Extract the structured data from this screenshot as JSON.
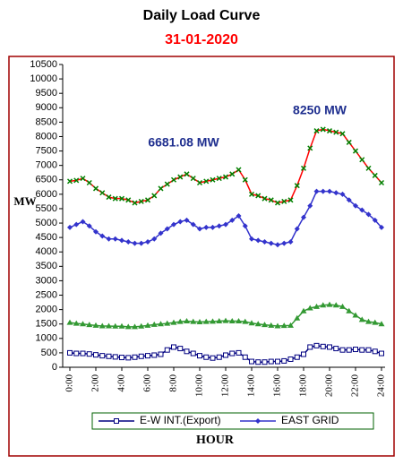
{
  "chart_data": {
    "type": "line",
    "title": "Daily Load Curve",
    "subtitle": "31-01-2020",
    "x_label": "HOUR",
    "y_label": "MW",
    "annotations": [
      "6681.08 MW",
      "8250 MW"
    ],
    "x": [
      0,
      0.5,
      1,
      1.5,
      2,
      2.5,
      3,
      3.5,
      4,
      4.5,
      5,
      5.5,
      6,
      6.5,
      7,
      7.5,
      8,
      8.5,
      9,
      9.5,
      10,
      10.5,
      11,
      11.5,
      12,
      12.5,
      13,
      13.5,
      14,
      14.5,
      15,
      15.5,
      16,
      16.5,
      17,
      17.5,
      18,
      18.5,
      19,
      19.5,
      20,
      20.5,
      21,
      21.5,
      22,
      22.5,
      23,
      23.5,
      24
    ],
    "xlim": [
      0,
      24
    ],
    "xticks": [
      {
        "value": 0,
        "label": "0:00"
      },
      {
        "value": 2,
        "label": "2:00"
      },
      {
        "value": 4,
        "label": "4:00"
      },
      {
        "value": 6,
        "label": "6:00"
      },
      {
        "value": 8,
        "label": "8:00"
      },
      {
        "value": 10,
        "label": "10:00"
      },
      {
        "value": 12,
        "label": "12:00"
      },
      {
        "value": 14,
        "label": "14:00"
      },
      {
        "value": 16,
        "label": "16:00"
      },
      {
        "value": 18,
        "label": "18:00"
      },
      {
        "value": 20,
        "label": "20:00"
      },
      {
        "value": 22,
        "label": "22:00"
      },
      {
        "value": 24,
        "label": "24:00"
      }
    ],
    "ylim": [
      0,
      10500
    ],
    "yticks": [
      0,
      500,
      1000,
      1500,
      2000,
      2500,
      3000,
      3500,
      4000,
      4500,
      5000,
      5500,
      6000,
      6500,
      7000,
      7500,
      8000,
      8500,
      9000,
      9500,
      10000,
      10500
    ],
    "series": [
      {
        "name": "E-W INT.(Export)",
        "color": "#000080",
        "marker": "square",
        "marker_color": "#000080",
        "values": [
          500,
          480,
          480,
          460,
          430,
          400,
          380,
          360,
          340,
          330,
          350,
          380,
          400,
          420,
          450,
          600,
          700,
          650,
          550,
          480,
          400,
          350,
          320,
          350,
          420,
          480,
          500,
          350,
          200,
          180,
          180,
          200,
          200,
          220,
          280,
          350,
          450,
          700,
          750,
          720,
          700,
          650,
          600,
          600,
          620,
          600,
          600,
          550,
          480
        ]
      },
      {
        "name": "EAST GRID",
        "color": "#3333cc",
        "marker": "diamond",
        "marker_color": "#3333cc",
        "values": [
          4850,
          4950,
          5050,
          4900,
          4700,
          4550,
          4450,
          4450,
          4400,
          4350,
          4300,
          4300,
          4350,
          4450,
          4650,
          4800,
          4950,
          5050,
          5100,
          4950,
          4800,
          4850,
          4850,
          4900,
          4950,
          5100,
          5250,
          4900,
          4450,
          4400,
          4350,
          4300,
          4250,
          4300,
          4350,
          4800,
          5200,
          5600,
          6100,
          6100,
          6100,
          6050,
          6000,
          5800,
          5600,
          5450,
          5300,
          5100,
          4850
        ]
      },
      {
        "color": "#ff0000",
        "marker": "x",
        "marker_color": "#008000",
        "values": [
          6450,
          6480,
          6550,
          6400,
          6200,
          6050,
          5900,
          5850,
          5850,
          5800,
          5700,
          5750,
          5800,
          5950,
          6200,
          6350,
          6500,
          6600,
          6700,
          6550,
          6400,
          6450,
          6500,
          6550,
          6600,
          6700,
          6850,
          6500,
          6000,
          5950,
          5850,
          5800,
          5700,
          5750,
          5800,
          6300,
          6900,
          7600,
          8200,
          8250,
          8200,
          8150,
          8100,
          7800,
          7500,
          7200,
          6900,
          6650,
          6400
        ]
      },
      {
        "color": "#339933",
        "marker": "triangle",
        "marker_color": "#339933",
        "values": [
          1550,
          1520,
          1500,
          1470,
          1450,
          1430,
          1430,
          1420,
          1420,
          1400,
          1400,
          1420,
          1450,
          1480,
          1500,
          1520,
          1550,
          1580,
          1600,
          1580,
          1570,
          1580,
          1590,
          1600,
          1610,
          1600,
          1600,
          1580,
          1530,
          1500,
          1470,
          1450,
          1430,
          1440,
          1450,
          1700,
          1950,
          2050,
          2100,
          2150,
          2170,
          2150,
          2100,
          1950,
          1800,
          1650,
          1580,
          1550,
          1500
        ]
      }
    ]
  }
}
